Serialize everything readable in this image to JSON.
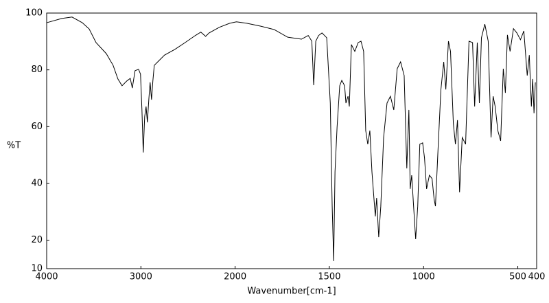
{
  "chart_data": {
    "type": "line",
    "xlabel": "Wavenumber[cm-1]",
    "ylabel": "%T",
    "xlim": [
      4000,
      400
    ],
    "ylim": [
      10,
      100
    ],
    "xticks": [
      4000,
      3000,
      2000,
      1500,
      1000,
      500,
      400
    ],
    "yticks": [
      10,
      20,
      40,
      60,
      80,
      100
    ],
    "x_scale_break": 2000,
    "x_scale_ratio": 2,
    "series": [
      {
        "color": "#000000",
        "x": [
          4000,
          3840,
          3731,
          3622,
          3549,
          3476,
          3367,
          3295,
          3244,
          3200,
          3149,
          3113,
          3091,
          3062,
          3025,
          3004,
          2989,
          2975,
          2960,
          2945,
          2931,
          2916,
          2902,
          2887,
          2873,
          2858,
          2822,
          2749,
          2640,
          2531,
          2422,
          2364,
          2313,
          2276,
          2167,
          2058,
          1993,
          1938,
          1866,
          1793,
          1721,
          1648,
          1612,
          1593,
          1583,
          1572,
          1557,
          1539,
          1514,
          1495,
          1485,
          1477,
          1470,
          1459,
          1445,
          1434,
          1419,
          1412,
          1401,
          1394,
          1383,
          1365,
          1347,
          1332,
          1318,
          1307,
          1296,
          1285,
          1274,
          1263,
          1256,
          1249,
          1238,
          1227,
          1212,
          1194,
          1176,
          1158,
          1140,
          1122,
          1103,
          1089,
          1078,
          1071,
          1063,
          1053,
          1042,
          1031,
          1020,
          1005,
          995,
          984,
          969,
          955,
          944,
          937,
          922,
          908,
          893,
          882,
          868,
          857,
          842,
          831,
          820,
          809,
          795,
          777,
          759,
          740,
          729,
          715,
          704,
          693,
          675,
          657,
          642,
          631,
          620,
          606,
          591,
          577,
          566,
          555,
          541,
          523,
          505,
          486,
          468,
          450,
          439,
          428,
          421,
          414,
          407
        ],
        "values": [
          96.6,
          98.1,
          98.6,
          96.6,
          94.4,
          89.6,
          85.7,
          81.6,
          76.8,
          74.4,
          76.1,
          77.0,
          73.6,
          79.7,
          80.2,
          78.5,
          65.9,
          50.9,
          63.5,
          67.1,
          61.5,
          69.5,
          75.6,
          69.5,
          76.1,
          81.6,
          82.8,
          85.2,
          87.2,
          89.6,
          92.1,
          93.3,
          91.8,
          93.0,
          95.0,
          96.4,
          96.9,
          96.4,
          95.4,
          94.2,
          91.5,
          90.8,
          92.1,
          90.1,
          74.6,
          90.1,
          92.1,
          93.0,
          91.3,
          68.3,
          32.0,
          12.7,
          44.1,
          59.8,
          74.4,
          76.3,
          74.4,
          68.3,
          70.7,
          67.1,
          88.9,
          86.5,
          89.6,
          90.1,
          86.5,
          58.6,
          53.8,
          58.6,
          44.1,
          34.4,
          28.4,
          34.9,
          21.1,
          32.0,
          56.2,
          68.3,
          70.7,
          65.9,
          80.4,
          82.8,
          78.0,
          45.3,
          65.9,
          38.1,
          42.9,
          32.0,
          20.4,
          32.0,
          53.8,
          54.3,
          49.0,
          38.1,
          42.9,
          41.7,
          34.4,
          32.0,
          53.8,
          73.1,
          82.8,
          73.1,
          90.1,
          86.5,
          61.1,
          53.8,
          62.3,
          36.9,
          56.2,
          53.8,
          90.1,
          89.6,
          67.1,
          89.6,
          68.3,
          91.3,
          96.1,
          90.1,
          56.2,
          70.7,
          67.1,
          58.6,
          55.0,
          80.4,
          71.9,
          92.3,
          86.5,
          94.5,
          93.0,
          90.6,
          93.7,
          78.0,
          85.2,
          67.1,
          76.8,
          64.7,
          75.6
        ]
      }
    ]
  }
}
